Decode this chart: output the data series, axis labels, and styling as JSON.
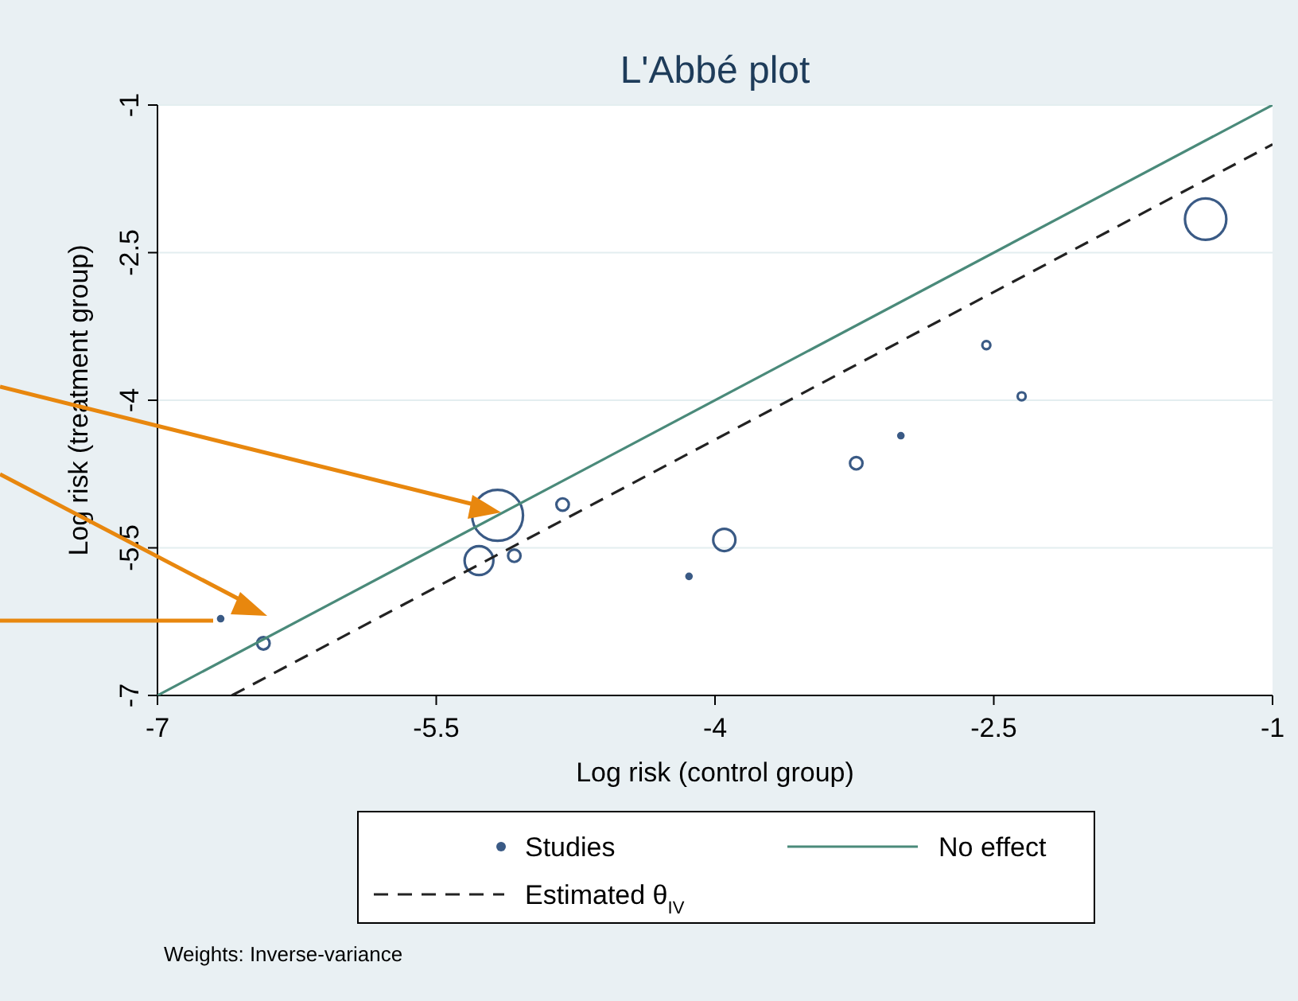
{
  "chart_data": {
    "type": "bubble",
    "title": "L'Abbé plot",
    "xlabel": "Log risk (control group)",
    "ylabel": "Log risk (treatment group)",
    "xlim": [
      -7,
      -1
    ],
    "xticks": [
      -7,
      -5.5,
      -4,
      -2.5,
      -1
    ],
    "ylim": [
      -7,
      -1
    ],
    "yticks": [
      -7,
      -5.5,
      -4,
      -2.5,
      -1
    ],
    "grid": "y",
    "legend": "bottom",
    "series": [
      {
        "name": "Studies",
        "marker": "circle",
        "color": "#3a5a85",
        "x": [
          -6.66,
          -6.43,
          -5.27,
          -5.17,
          -5.08,
          -4.82,
          -4.14,
          -3.95,
          -3.24,
          -3.0,
          -2.54,
          -2.35,
          -1.36
        ],
        "values": [
          -6.22,
          -6.47,
          -5.63,
          -5.17,
          -5.58,
          -5.06,
          -5.79,
          -5.42,
          -4.64,
          -4.36,
          -3.44,
          -3.96,
          -2.16
        ],
        "sizes": [
          0.01,
          0.06,
          0.32,
          1,
          0.06,
          0.06,
          0.01,
          0.19,
          0.06,
          0.01,
          0.025,
          0.025,
          0.66
        ]
      },
      {
        "name": "No effect",
        "type": "line",
        "color": "#4a8a7a",
        "line_style": "solid",
        "x": [
          -7,
          -1
        ],
        "values": [
          -7,
          -1
        ]
      },
      {
        "name": "Estimated θ$_{IV}$",
        "type": "line",
        "color": "#222222",
        "line_style": "dashed",
        "x": [
          -6.6,
          -1
        ],
        "values": [
          -7,
          -1.4
        ]
      }
    ],
    "annotations": [
      "Weights: Inverse-variance"
    ]
  }
}
